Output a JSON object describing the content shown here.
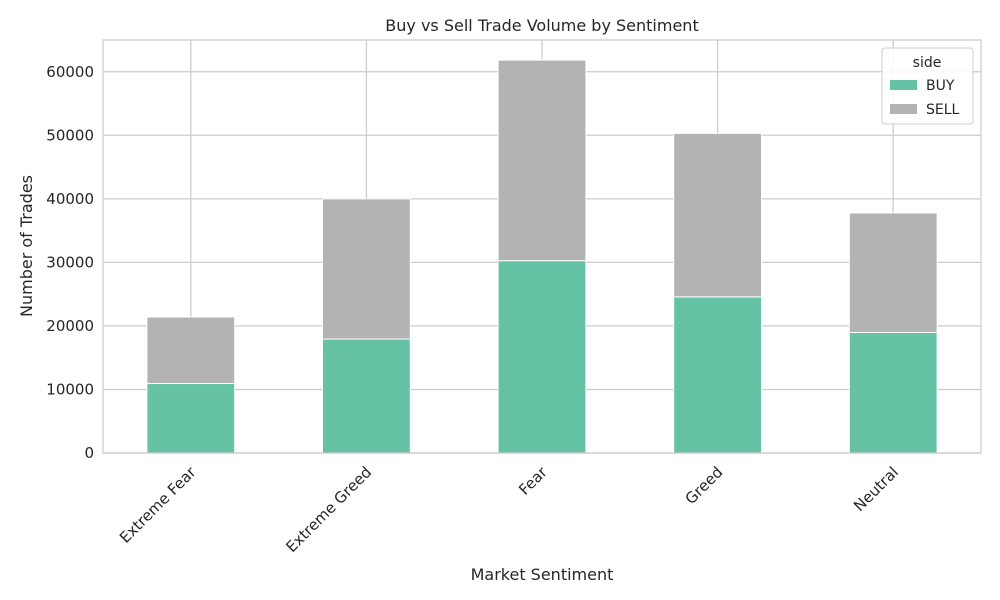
{
  "chart_data": {
    "type": "bar",
    "stacked": true,
    "title": "Buy vs Sell Trade Volume by Sentiment",
    "xlabel": "Market Sentiment",
    "ylabel": "Number of Trades",
    "categories": [
      "Extreme Fear",
      "Extreme Greed",
      "Fear",
      "Greed",
      "Neutral"
    ],
    "series": [
      {
        "name": "BUY",
        "values": [
          10935,
          17940,
          30270,
          24576,
          18969
        ],
        "color": "#66c2a5"
      },
      {
        "name": "SELL",
        "values": [
          10465,
          22052,
          31567,
          25727,
          18806
        ],
        "color": "#b3b3b3"
      }
    ],
    "ylim": [
      0,
      65000
    ],
    "yticks": [
      0,
      10000,
      20000,
      30000,
      40000,
      50000,
      60000
    ],
    "ytick_labels": [
      "0",
      "10000",
      "20000",
      "30000",
      "40000",
      "50000",
      "60000"
    ],
    "grid": true,
    "legend": {
      "title": "side",
      "placement": "top-right"
    }
  }
}
